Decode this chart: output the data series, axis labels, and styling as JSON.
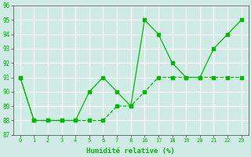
{
  "xlabel": "Humidité relative (%)",
  "bg_color": "#d0ebe5",
  "grid_color": "#ffffff",
  "line_color": "#00bb00",
  "series1_y": [
    91,
    88,
    88,
    88,
    88,
    90,
    91,
    90,
    89,
    95,
    94,
    92,
    91,
    91,
    93,
    94,
    95
  ],
  "series2_y": [
    91,
    88,
    88,
    88,
    88,
    88,
    88,
    89,
    89,
    90,
    91,
    91,
    91,
    91,
    91,
    91,
    91
  ],
  "ylim": [
    87,
    96
  ],
  "yticks": [
    87,
    88,
    89,
    90,
    91,
    92,
    93,
    94,
    95,
    96
  ],
  "xtick_labels": [
    "0",
    "1",
    "2",
    "3",
    "4",
    "5",
    "6",
    "7",
    "8",
    "16",
    "17",
    "18",
    "19",
    "20",
    "21",
    "22",
    "23"
  ],
  "figsize": [
    3.2,
    2.0
  ],
  "dpi": 100
}
